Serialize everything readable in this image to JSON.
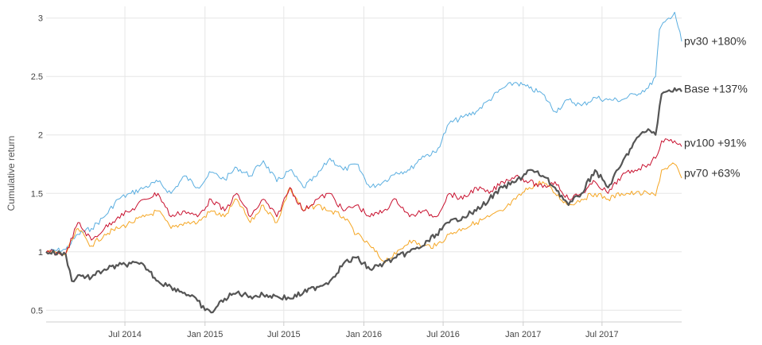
{
  "chart_data": {
    "type": "line",
    "title": "",
    "xlabel": "",
    "ylabel": "Cumulative return",
    "grid": true,
    "legend": "end-of-line labels",
    "xlim": [
      "2014-01-01",
      "2017-12-31"
    ],
    "ylim": [
      0.4,
      3.1
    ],
    "x_ticks": [
      {
        "date": "2014-07-01",
        "label": "Jul 2014"
      },
      {
        "date": "2015-01-01",
        "label": "Jan 2015"
      },
      {
        "date": "2015-07-01",
        "label": "Jul 2015"
      },
      {
        "date": "2016-01-01",
        "label": "Jan 2016"
      },
      {
        "date": "2016-07-01",
        "label": "Jul 2016"
      },
      {
        "date": "2017-01-01",
        "label": "Jan 2017"
      },
      {
        "date": "2017-07-01",
        "label": "Jul 2017"
      }
    ],
    "y_ticks": [
      {
        "value": 0.5,
        "label": "0.5"
      },
      {
        "value": 1,
        "label": "1"
      },
      {
        "value": 1.5,
        "label": "1.5"
      },
      {
        "value": 2,
        "label": "2"
      },
      {
        "value": 2.5,
        "label": "2.5"
      },
      {
        "value": 3,
        "label": "3"
      }
    ],
    "series": [
      {
        "name": "pv30",
        "end_label": "pv30 +180%",
        "color": "#5aaee0",
        "width": 1,
        "points": [
          [
            "2014-01-01",
            1.0
          ],
          [
            "2014-02-15",
            1.02
          ],
          [
            "2014-03-15",
            1.15
          ],
          [
            "2014-04-15",
            1.2
          ],
          [
            "2014-05-15",
            1.3
          ],
          [
            "2014-06-15",
            1.45
          ],
          [
            "2014-07-15",
            1.5
          ],
          [
            "2014-08-15",
            1.55
          ],
          [
            "2014-09-15",
            1.6
          ],
          [
            "2014-10-15",
            1.5
          ],
          [
            "2014-11-15",
            1.65
          ],
          [
            "2014-12-15",
            1.55
          ],
          [
            "2015-01-15",
            1.68
          ],
          [
            "2015-02-15",
            1.62
          ],
          [
            "2015-03-15",
            1.72
          ],
          [
            "2015-04-15",
            1.65
          ],
          [
            "2015-05-15",
            1.78
          ],
          [
            "2015-06-15",
            1.6
          ],
          [
            "2015-07-15",
            1.7
          ],
          [
            "2015-08-15",
            1.55
          ],
          [
            "2015-09-15",
            1.65
          ],
          [
            "2015-10-15",
            1.8
          ],
          [
            "2015-11-15",
            1.7
          ],
          [
            "2015-12-15",
            1.75
          ],
          [
            "2016-01-15",
            1.55
          ],
          [
            "2016-02-15",
            1.6
          ],
          [
            "2016-03-15",
            1.68
          ],
          [
            "2016-04-15",
            1.7
          ],
          [
            "2016-05-15",
            1.82
          ],
          [
            "2016-06-15",
            1.85
          ],
          [
            "2016-07-15",
            2.1
          ],
          [
            "2016-08-15",
            2.15
          ],
          [
            "2016-09-15",
            2.2
          ],
          [
            "2016-10-15",
            2.3
          ],
          [
            "2016-11-15",
            2.4
          ],
          [
            "2016-12-15",
            2.45
          ],
          [
            "2017-01-15",
            2.4
          ],
          [
            "2017-02-15",
            2.35
          ],
          [
            "2017-03-15",
            2.2
          ],
          [
            "2017-04-15",
            2.3
          ],
          [
            "2017-05-15",
            2.25
          ],
          [
            "2017-06-15",
            2.32
          ],
          [
            "2017-07-15",
            2.3
          ],
          [
            "2017-08-15",
            2.3
          ],
          [
            "2017-09-15",
            2.35
          ],
          [
            "2017-10-15",
            2.4
          ],
          [
            "2017-11-01",
            2.5
          ],
          [
            "2017-11-10",
            2.9
          ],
          [
            "2017-12-01",
            3.0
          ],
          [
            "2017-12-15",
            3.05
          ],
          [
            "2017-12-31",
            2.8
          ]
        ]
      },
      {
        "name": "Base",
        "end_label": "Base +137%",
        "color": "#555555",
        "width": 2.2,
        "points": [
          [
            "2014-01-01",
            1.0
          ],
          [
            "2014-02-15",
            0.98
          ],
          [
            "2014-03-01",
            0.75
          ],
          [
            "2014-03-15",
            0.8
          ],
          [
            "2014-04-15",
            0.78
          ],
          [
            "2014-05-15",
            0.85
          ],
          [
            "2014-06-15",
            0.88
          ],
          [
            "2014-07-15",
            0.9
          ],
          [
            "2014-08-15",
            0.88
          ],
          [
            "2014-09-15",
            0.75
          ],
          [
            "2014-10-15",
            0.7
          ],
          [
            "2014-11-15",
            0.65
          ],
          [
            "2014-12-15",
            0.58
          ],
          [
            "2015-01-01",
            0.5
          ],
          [
            "2015-01-15",
            0.48
          ],
          [
            "2015-02-15",
            0.6
          ],
          [
            "2015-03-15",
            0.65
          ],
          [
            "2015-04-15",
            0.62
          ],
          [
            "2015-05-15",
            0.63
          ],
          [
            "2015-06-15",
            0.62
          ],
          [
            "2015-07-15",
            0.6
          ],
          [
            "2015-08-15",
            0.65
          ],
          [
            "2015-09-15",
            0.7
          ],
          [
            "2015-10-15",
            0.75
          ],
          [
            "2015-11-15",
            0.9
          ],
          [
            "2015-12-15",
            0.95
          ],
          [
            "2016-01-15",
            0.85
          ],
          [
            "2016-02-15",
            0.9
          ],
          [
            "2016-03-15",
            0.95
          ],
          [
            "2016-04-15",
            1.0
          ],
          [
            "2016-05-15",
            1.05
          ],
          [
            "2016-06-15",
            1.15
          ],
          [
            "2016-07-15",
            1.25
          ],
          [
            "2016-08-15",
            1.3
          ],
          [
            "2016-09-15",
            1.35
          ],
          [
            "2016-10-15",
            1.45
          ],
          [
            "2016-11-15",
            1.55
          ],
          [
            "2016-12-15",
            1.6
          ],
          [
            "2017-01-15",
            1.7
          ],
          [
            "2017-02-15",
            1.65
          ],
          [
            "2017-03-15",
            1.55
          ],
          [
            "2017-04-15",
            1.4
          ],
          [
            "2017-05-15",
            1.5
          ],
          [
            "2017-06-15",
            1.7
          ],
          [
            "2017-07-15",
            1.55
          ],
          [
            "2017-08-15",
            1.75
          ],
          [
            "2017-09-15",
            1.95
          ],
          [
            "2017-10-15",
            2.05
          ],
          [
            "2017-11-01",
            2.0
          ],
          [
            "2017-11-15",
            2.35
          ],
          [
            "2017-12-15",
            2.4
          ],
          [
            "2017-12-31",
            2.37
          ]
        ]
      },
      {
        "name": "pv100",
        "end_label": "pv100 +91%",
        "color": "#c8102e",
        "width": 1,
        "points": [
          [
            "2014-01-01",
            1.0
          ],
          [
            "2014-02-15",
            0.98
          ],
          [
            "2014-03-15",
            1.25
          ],
          [
            "2014-04-15",
            1.1
          ],
          [
            "2014-05-15",
            1.2
          ],
          [
            "2014-06-15",
            1.3
          ],
          [
            "2014-07-15",
            1.35
          ],
          [
            "2014-08-15",
            1.45
          ],
          [
            "2014-09-15",
            1.5
          ],
          [
            "2014-10-15",
            1.3
          ],
          [
            "2014-11-15",
            1.35
          ],
          [
            "2014-12-15",
            1.3
          ],
          [
            "2015-01-15",
            1.45
          ],
          [
            "2015-02-15",
            1.35
          ],
          [
            "2015-03-15",
            1.5
          ],
          [
            "2015-04-15",
            1.3
          ],
          [
            "2015-05-15",
            1.45
          ],
          [
            "2015-06-15",
            1.3
          ],
          [
            "2015-07-15",
            1.55
          ],
          [
            "2015-08-15",
            1.35
          ],
          [
            "2015-09-15",
            1.45
          ],
          [
            "2015-10-15",
            1.5
          ],
          [
            "2015-11-15",
            1.35
          ],
          [
            "2015-12-15",
            1.4
          ],
          [
            "2016-01-15",
            1.3
          ],
          [
            "2016-02-15",
            1.35
          ],
          [
            "2016-03-15",
            1.45
          ],
          [
            "2016-04-15",
            1.3
          ],
          [
            "2016-05-15",
            1.35
          ],
          [
            "2016-06-15",
            1.3
          ],
          [
            "2016-07-15",
            1.5
          ],
          [
            "2016-08-15",
            1.45
          ],
          [
            "2016-09-15",
            1.55
          ],
          [
            "2016-10-15",
            1.5
          ],
          [
            "2016-11-15",
            1.6
          ],
          [
            "2016-12-15",
            1.65
          ],
          [
            "2017-01-15",
            1.6
          ],
          [
            "2017-02-15",
            1.55
          ],
          [
            "2017-03-15",
            1.6
          ],
          [
            "2017-04-15",
            1.45
          ],
          [
            "2017-05-15",
            1.5
          ],
          [
            "2017-06-15",
            1.6
          ],
          [
            "2017-07-15",
            1.5
          ],
          [
            "2017-08-15",
            1.65
          ],
          [
            "2017-09-15",
            1.7
          ],
          [
            "2017-10-15",
            1.75
          ],
          [
            "2017-11-01",
            1.8
          ],
          [
            "2017-11-15",
            1.95
          ],
          [
            "2017-12-15",
            1.95
          ],
          [
            "2017-12-31",
            1.9
          ]
        ]
      },
      {
        "name": "pv70",
        "end_label": "pv70 +63%",
        "color": "#f5a623",
        "width": 1,
        "points": [
          [
            "2014-01-01",
            1.0
          ],
          [
            "2014-02-15",
            0.98
          ],
          [
            "2014-03-15",
            1.2
          ],
          [
            "2014-04-15",
            1.05
          ],
          [
            "2014-05-15",
            1.15
          ],
          [
            "2014-06-15",
            1.2
          ],
          [
            "2014-07-15",
            1.25
          ],
          [
            "2014-08-15",
            1.3
          ],
          [
            "2014-09-15",
            1.35
          ],
          [
            "2014-10-15",
            1.2
          ],
          [
            "2014-11-15",
            1.25
          ],
          [
            "2014-12-15",
            1.25
          ],
          [
            "2015-01-15",
            1.35
          ],
          [
            "2015-02-15",
            1.3
          ],
          [
            "2015-03-15",
            1.45
          ],
          [
            "2015-04-15",
            1.25
          ],
          [
            "2015-05-15",
            1.4
          ],
          [
            "2015-06-15",
            1.25
          ],
          [
            "2015-07-15",
            1.55
          ],
          [
            "2015-08-15",
            1.35
          ],
          [
            "2015-09-15",
            1.4
          ],
          [
            "2015-10-15",
            1.35
          ],
          [
            "2015-11-15",
            1.3
          ],
          [
            "2015-12-15",
            1.15
          ],
          [
            "2016-01-15",
            1.05
          ],
          [
            "2016-02-15",
            0.92
          ],
          [
            "2016-03-15",
            0.98
          ],
          [
            "2016-04-15",
            1.1
          ],
          [
            "2016-05-15",
            1.05
          ],
          [
            "2016-06-15",
            1.05
          ],
          [
            "2016-07-15",
            1.15
          ],
          [
            "2016-08-15",
            1.2
          ],
          [
            "2016-09-15",
            1.25
          ],
          [
            "2016-10-15",
            1.3
          ],
          [
            "2016-11-15",
            1.35
          ],
          [
            "2016-12-15",
            1.45
          ],
          [
            "2017-01-15",
            1.55
          ],
          [
            "2017-02-15",
            1.6
          ],
          [
            "2017-03-15",
            1.5
          ],
          [
            "2017-04-15",
            1.4
          ],
          [
            "2017-05-15",
            1.45
          ],
          [
            "2017-06-15",
            1.5
          ],
          [
            "2017-07-15",
            1.45
          ],
          [
            "2017-08-15",
            1.5
          ],
          [
            "2017-09-15",
            1.5
          ],
          [
            "2017-10-15",
            1.5
          ],
          [
            "2017-11-01",
            1.48
          ],
          [
            "2017-11-15",
            1.7
          ],
          [
            "2017-12-15",
            1.75
          ],
          [
            "2017-12-31",
            1.63
          ]
        ]
      }
    ]
  }
}
